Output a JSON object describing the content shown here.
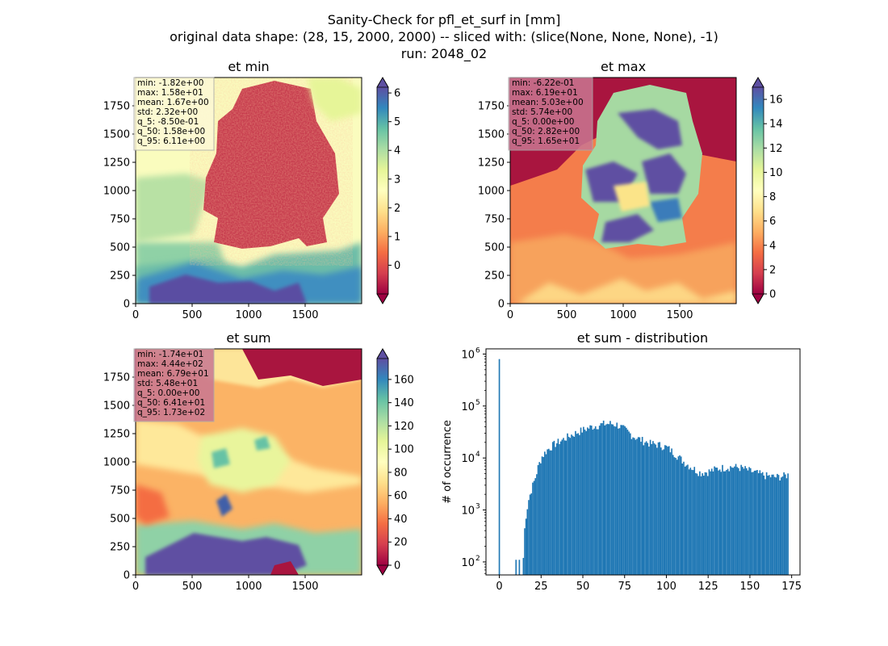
{
  "figure": {
    "suptitle_lines": [
      "Sanity-Check for pfl_et_surf in [mm]",
      "original data shape: (28, 15, 2000, 2000) -- sliced with: (slice(None, None, None), -1)",
      "run: 2048_02"
    ]
  },
  "colors": {
    "ocean_low": "#9e0142",
    "spectral_stops": [
      "#9e0142",
      "#d53e4f",
      "#f46d43",
      "#fdae61",
      "#fee08b",
      "#ffffbf",
      "#e6f598",
      "#abdda4",
      "#66c2a5",
      "#3288bd",
      "#5e4fa2"
    ],
    "hist_bar": "#1f77b4"
  },
  "chart_data": [
    {
      "type": "heatmap",
      "title": "et min",
      "xlim": [
        0,
        2000
      ],
      "ylim": [
        0,
        2000
      ],
      "x_ticks": [
        0,
        500,
        1000,
        1500
      ],
      "y_ticks": [
        0,
        250,
        500,
        750,
        1000,
        1250,
        1500,
        1750
      ],
      "colorbar": {
        "min": -1,
        "max": 6.2,
        "ticks": [
          0,
          1,
          2,
          3,
          4,
          5,
          6
        ],
        "extend": "both",
        "cmap": "Spectral"
      },
      "stats": [
        "min: -1.82e+00",
        "max: 1.58e+01",
        "mean: 1.67e+00",
        "std: 2.32e+00",
        "q_5: -8.50e-01",
        "q_50: 1.58e+00",
        "q_95: 6.11e+00"
      ],
      "stats_box_color": "#fdf9d6"
    },
    {
      "type": "heatmap",
      "title": "et max",
      "xlim": [
        0,
        2000
      ],
      "ylim": [
        0,
        2000
      ],
      "x_ticks": [
        0,
        500,
        1000,
        1500
      ],
      "y_ticks": [
        0,
        250,
        500,
        750,
        1000,
        1250,
        1500,
        1750
      ],
      "colorbar": {
        "min": 0,
        "max": 17,
        "ticks": [
          0,
          2,
          4,
          6,
          8,
          10,
          12,
          14,
          16
        ],
        "extend": "both",
        "cmap": "Spectral"
      },
      "stats": [
        "min: -6.22e-01",
        "max: 6.19e+01",
        "mean: 5.03e+00",
        "std: 5.74e+00",
        "q_5: 0.00e+00",
        "q_50: 2.82e+00",
        "q_95: 1.65e+01"
      ],
      "stats_box_color": "#c97792"
    },
    {
      "type": "heatmap",
      "title": "et sum",
      "xlim": [
        0,
        2000
      ],
      "ylim": [
        0,
        2000
      ],
      "x_ticks": [
        0,
        500,
        1000,
        1500
      ],
      "y_ticks": [
        0,
        250,
        500,
        750,
        1000,
        1250,
        1500,
        1750
      ],
      "colorbar": {
        "min": 0,
        "max": 178,
        "ticks": [
          0,
          20,
          40,
          60,
          80,
          100,
          120,
          140,
          160
        ],
        "extend": "both",
        "cmap": "Spectral"
      },
      "stats": [
        "min: -1.74e+01",
        "max: 4.44e+02",
        "mean: 6.79e+01",
        "std: 5.48e+01",
        "q_5: 0.00e+00",
        "q_50: 6.41e+01",
        "q_95: 1.73e+02"
      ],
      "stats_box_color": "#c97792"
    },
    {
      "type": "bar",
      "title": "et sum - distribution",
      "ylabel": "# of occurrence",
      "xlim": [
        -8,
        180
      ],
      "y_log": true,
      "ylim_log10": [
        1.75,
        6.1
      ],
      "x_ticks": [
        0,
        25,
        50,
        75,
        100,
        125,
        150,
        175
      ],
      "y_ticks": [
        {
          "label": "10",
          "exp": "2",
          "log10": 2
        },
        {
          "label": "10",
          "exp": "3",
          "log10": 3
        },
        {
          "label": "10",
          "exp": "4",
          "log10": 4
        },
        {
          "label": "10",
          "exp": "5",
          "log10": 5
        },
        {
          "label": "10",
          "exp": "6",
          "log10": 6
        }
      ],
      "bins": {
        "zero_spike": {
          "x": 0,
          "count": 800000
        },
        "small": [
          {
            "x": 10,
            "count": 110
          },
          {
            "x": 12,
            "count": 110
          }
        ],
        "range": [
          14,
          173
        ],
        "bin_width": 0.8,
        "profile_points": [
          [
            14,
            120
          ],
          [
            15,
            600
          ],
          [
            17,
            1500
          ],
          [
            19,
            2600
          ],
          [
            21,
            4000
          ],
          [
            23,
            7000
          ],
          [
            25,
            10500
          ],
          [
            28,
            14000
          ],
          [
            32,
            18000
          ],
          [
            37,
            22000
          ],
          [
            42,
            27000
          ],
          [
            48,
            33000
          ],
          [
            55,
            40000
          ],
          [
            62,
            45000
          ],
          [
            66,
            46000
          ],
          [
            70,
            44000
          ],
          [
            75,
            35000
          ],
          [
            80,
            26000
          ],
          [
            85,
            22000
          ],
          [
            90,
            19000
          ],
          [
            95,
            18000
          ],
          [
            100,
            16000
          ],
          [
            105,
            12000
          ],
          [
            110,
            8500
          ],
          [
            115,
            6500
          ],
          [
            120,
            5200
          ],
          [
            125,
            5500
          ],
          [
            130,
            6200
          ],
          [
            135,
            6600
          ],
          [
            140,
            6800
          ],
          [
            145,
            6400
          ],
          [
            150,
            5600
          ],
          [
            155,
            5000
          ],
          [
            160,
            4500
          ],
          [
            165,
            4300
          ],
          [
            170,
            4500
          ],
          [
            173,
            4800
          ]
        ]
      }
    }
  ]
}
